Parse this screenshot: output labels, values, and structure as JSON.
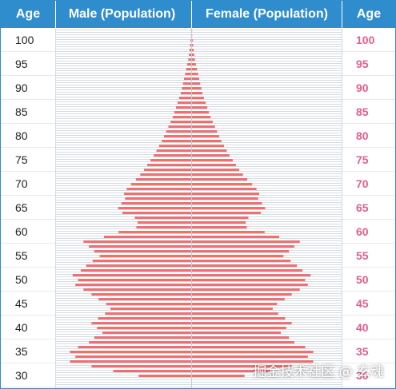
{
  "header": {
    "age_left": "Age",
    "male": "Male (Population)",
    "female": "Female (Population)",
    "age_right": "Age"
  },
  "age_labels": [
    "100",
    "95",
    "90",
    "85",
    "80",
    "75",
    "70",
    "65",
    "60",
    "55",
    "50",
    "45",
    "40",
    "35",
    "30"
  ],
  "watermark": "掘金技术社区 @ 玄魂",
  "colors": {
    "header_bg": "#2f8ccd",
    "bar": "#ee7070",
    "right_age_label": "#e0608a",
    "grid_line": "#d6dbe2",
    "center_line": "#c8cdd4"
  },
  "chart_data": {
    "type": "bar",
    "orientation": "population-pyramid",
    "categories": [
      101,
      100,
      99,
      98,
      97,
      96,
      95,
      94,
      93,
      92,
      91,
      90,
      89,
      88,
      87,
      86,
      85,
      84,
      83,
      82,
      81,
      80,
      79,
      78,
      77,
      76,
      75,
      74,
      73,
      72,
      71,
      70,
      69,
      68,
      67,
      66,
      65,
      64,
      63,
      62,
      61,
      60,
      59,
      58,
      57,
      56,
      55,
      54,
      53,
      52,
      51,
      50,
      49,
      48,
      47,
      46,
      45,
      44,
      43,
      42,
      41,
      40,
      39,
      38,
      37,
      36,
      35,
      34,
      33,
      32,
      31,
      30,
      29
    ],
    "series": [
      {
        "name": "Male (Population)",
        "values": [
          0.1,
          0.1,
          0.2,
          0.3,
          0.4,
          0.5,
          0.6,
          0.8,
          1.0,
          1.2,
          1.4,
          1.6,
          1.8,
          2.0,
          2.3,
          2.6,
          2.9,
          3.2,
          3.5,
          3.9,
          4.3,
          4.7,
          5.1,
          5.5,
          6.0,
          6.5,
          7.0,
          7.6,
          8.2,
          8.8,
          9.5,
          10.3,
          11.2,
          12.0,
          12.5,
          12.3,
          13.0,
          13.6,
          12.8,
          10.5,
          10.0,
          10.2,
          13.5,
          16.2,
          20.0,
          19.0,
          18.0,
          17.0,
          18.3,
          19.5,
          20.5,
          22.0,
          21.0,
          21.5,
          20.0,
          18.5,
          17.2,
          15.8,
          15.0,
          16.0,
          17.3,
          18.5,
          17.5,
          16.5,
          18.0,
          19.0,
          21.0,
          22.5,
          21.5,
          22.5,
          18.5,
          14.5,
          9.8
        ]
      },
      {
        "name": "Female (Population)",
        "values": [
          0.1,
          0.1,
          0.2,
          0.3,
          0.4,
          0.5,
          0.6,
          0.8,
          1.0,
          1.2,
          1.4,
          1.6,
          1.8,
          2.0,
          2.3,
          2.6,
          2.9,
          3.2,
          3.5,
          3.9,
          4.3,
          4.7,
          5.1,
          5.5,
          6.0,
          6.5,
          7.0,
          7.6,
          8.2,
          8.8,
          9.5,
          10.3,
          11.2,
          12.0,
          12.5,
          12.3,
          13.0,
          13.6,
          12.8,
          10.5,
          10.0,
          10.2,
          13.5,
          16.2,
          20.0,
          19.0,
          18.0,
          17.0,
          18.3,
          19.5,
          20.5,
          22.0,
          21.0,
          21.5,
          20.0,
          18.5,
          17.2,
          15.8,
          15.0,
          16.0,
          17.3,
          18.5,
          17.5,
          16.5,
          18.0,
          19.0,
          21.0,
          22.5,
          21.5,
          22.5,
          18.5,
          14.5,
          9.8
        ]
      }
    ],
    "xlim": [
      -25,
      25
    ],
    "grid": true,
    "legend": "none",
    "xlabel": "",
    "ylabel": "Age"
  }
}
